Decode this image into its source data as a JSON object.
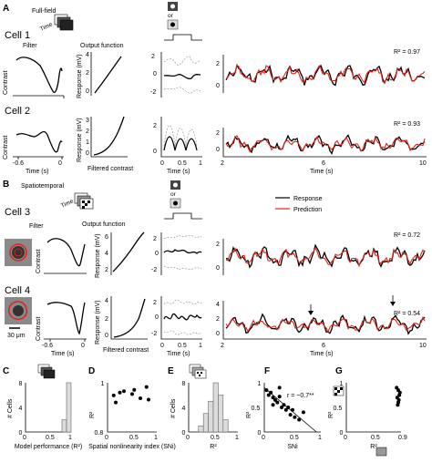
{
  "panel_labels": [
    "A",
    "B",
    "C",
    "D",
    "E",
    "F",
    "G"
  ],
  "panel_a": {
    "stimulus": "Full-field",
    "time_tag": "Time",
    "or_label": "or",
    "cells": [
      {
        "label": "Cell 1",
        "r2": "R² = 0.97"
      },
      {
        "label": "Cell 2",
        "r2": "R² = 0.93"
      }
    ],
    "filter_title": "Filter",
    "output_title": "Output function",
    "contrast_label": "Contrast",
    "response_mv_label": "Response (mV)",
    "time_s_label": "Time (s)",
    "filtered_contrast_label": "Filtered contrast",
    "filter_ticks": [
      "-0.6",
      "0"
    ],
    "output_yticks": [
      "4",
      "2",
      "0"
    ],
    "output_yticks_2": [
      "3",
      "2",
      "1",
      "0"
    ],
    "avg_yticks": [
      "2",
      "0",
      "-2"
    ],
    "avg_yticks_2": [
      "2",
      "0"
    ],
    "avg_xticks": [
      "0",
      "0.5",
      "1"
    ],
    "trace_yticks": [
      "2",
      "0"
    ],
    "trace_xticks": [
      "2",
      "6",
      "10"
    ]
  },
  "panel_b": {
    "stimulus": "Spatiotemporal",
    "time_tag": "Time",
    "or_label": "or",
    "legend": [
      "Response",
      "Prediction"
    ],
    "cells": [
      {
        "label": "Cell 3",
        "r2": "R² = 0.72"
      },
      {
        "label": "Cell 4",
        "r2": "R² = 0.54"
      }
    ],
    "filter_title": "Filter",
    "output_title": "Output function",
    "scale_bar": "30 μm",
    "contrast_label": "Contrast",
    "response_mv_label": "Response (mV)",
    "time_s_label": "Time (s)",
    "filtered_contrast_label": "Filtered contrast",
    "filter_ticks": [
      "-0.6",
      "0"
    ],
    "output_yticks_3": [
      "6",
      "4",
      "2"
    ],
    "output_yticks_4": [
      "4",
      "2",
      "0"
    ],
    "avg_yticks_3": [
      "2",
      "0",
      "-2"
    ],
    "avg_yticks_4": [
      "2",
      "0",
      "-2"
    ],
    "avg_xticks": [
      "0",
      "0.5",
      "1"
    ],
    "trace_yticks_3": [
      "2",
      "0"
    ],
    "trace_yticks_4": [
      "4",
      "2",
      "0"
    ],
    "trace_xticks": [
      "2",
      "6",
      "10"
    ]
  },
  "colors": {
    "response": "#000000",
    "prediction": "#e2231a",
    "dashed_trace": "#999999",
    "bar_fill": "#dcdcdc"
  },
  "chart_data": [
    {
      "panel": "C",
      "type": "bar",
      "xlabel": "Model performance (R²)",
      "ylabel": "# Cells",
      "xticks": [
        "0",
        "0.5",
        "1"
      ],
      "yticks": [
        "8",
        "4",
        "0"
      ],
      "xlim": [
        0,
        1
      ],
      "ylim": [
        0,
        8
      ],
      "bins": [
        [
          0.8,
          0.9
        ],
        [
          0.9,
          1.0
        ]
      ],
      "counts": [
        2,
        8
      ]
    },
    {
      "panel": "D",
      "type": "scatter",
      "xlabel": "Spatial nonlinearity index (SNi)",
      "ylabel": "R²",
      "xticks": [
        "0",
        "0.5",
        "1"
      ],
      "yticks": [
        "1",
        "0.8"
      ],
      "xlim": [
        0,
        1.2
      ],
      "ylim": [
        0.65,
        1.0
      ],
      "x": [
        0.15,
        0.3,
        0.4,
        0.6,
        0.65,
        0.8,
        0.95,
        0.2,
        1.0
      ],
      "y": [
        0.91,
        0.93,
        0.94,
        0.92,
        0.95,
        0.89,
        0.97,
        0.86,
        0.88
      ]
    },
    {
      "panel": "E",
      "type": "bar",
      "xlabel": "R²",
      "ylabel": "# Cells",
      "xticks": [
        "0",
        "0.5",
        "1"
      ],
      "yticks": [
        "8",
        "4",
        "0"
      ],
      "xlim": [
        0,
        1
      ],
      "ylim": [
        0,
        8
      ],
      "bins": [
        [
          0.2,
          0.3
        ],
        [
          0.3,
          0.4
        ],
        [
          0.4,
          0.5
        ],
        [
          0.5,
          0.6
        ],
        [
          0.6,
          0.7
        ],
        [
          0.7,
          0.8
        ]
      ],
      "counts": [
        1,
        3,
        5,
        8,
        6,
        2
      ]
    },
    {
      "panel": "F",
      "type": "scatter",
      "xlabel": "SNi",
      "ylabel": "R²",
      "annotation": "r = −0.7**",
      "xticks": [
        "0",
        "0.5",
        "1"
      ],
      "yticks": [
        "1",
        "0.5",
        "0"
      ],
      "xlim": [
        0,
        1.3
      ],
      "ylim": [
        0,
        1
      ],
      "x": [
        0.05,
        0.1,
        0.15,
        0.2,
        0.25,
        0.3,
        0.35,
        0.4,
        0.45,
        0.5,
        0.55,
        0.6,
        0.65,
        0.7,
        0.8,
        0.9,
        0.35,
        0.2
      ],
      "y": [
        0.85,
        0.75,
        0.8,
        0.7,
        0.65,
        0.6,
        0.72,
        0.5,
        0.55,
        0.45,
        0.5,
        0.35,
        0.45,
        0.3,
        0.25,
        0.4,
        0.9,
        0.55
      ],
      "fit_line": {
        "x": [
          0,
          1.2
        ],
        "y": [
          0.9,
          0.0
        ]
      }
    },
    {
      "panel": "G",
      "type": "scatter",
      "xlabel": "R²",
      "ylabel": "R²",
      "xticks": [
        "0",
        "0.5",
        "0.9"
      ],
      "yticks": [
        "1",
        "0.5",
        "0"
      ],
      "xlim": [
        0,
        1
      ],
      "ylim": [
        0,
        1
      ],
      "x": [
        0.92,
        0.95,
        0.97,
        0.93,
        0.96,
        0.98,
        0.94,
        0.95
      ],
      "y": [
        0.9,
        0.85,
        0.75,
        0.7,
        0.65,
        0.8,
        0.55,
        0.6
      ]
    }
  ]
}
